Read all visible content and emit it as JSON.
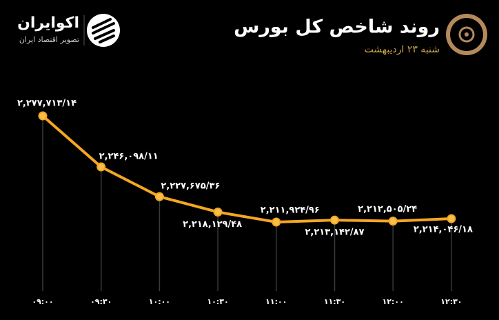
{
  "chart_data": {
    "type": "line",
    "title": "روند شاخص کل بورس",
    "subtitle": "شنبه ۲۳ اردیبهشت",
    "brand": "اکوایران",
    "brand_tagline": "تصویر اقتصاد ایران",
    "categories": [
      "۰۹:۰۰",
      "۰۹:۳۰",
      "۱۰:۰۰",
      "۱۰:۳۰",
      "۱۱:۰۰",
      "۱۱:۳۰",
      "۱۲:۰۰",
      "۱۲:۳۰"
    ],
    "values": [
      2277713.14,
      2246098.11,
      2227675.36,
      2218129.48,
      2211924.96,
      2213142.87,
      2212505.24,
      2214046.18
    ],
    "value_labels": [
      "۲,۲۷۷,۷۱۳/۱۴",
      "۲,۲۴۶,۰۹۸/۱۱",
      "۲,۲۲۷,۶۷۵/۳۶",
      "۲,۲۱۸,۱۲۹/۴۸",
      "۲,۲۱۱,۹۲۴/۹۶",
      "۲,۲۱۳,۱۴۲/۸۷",
      "۲,۲۱۲,۵۰۵/۲۴",
      "۲,۲۱۴,۰۴۶/۱۸"
    ],
    "color": "#f5a623"
  }
}
